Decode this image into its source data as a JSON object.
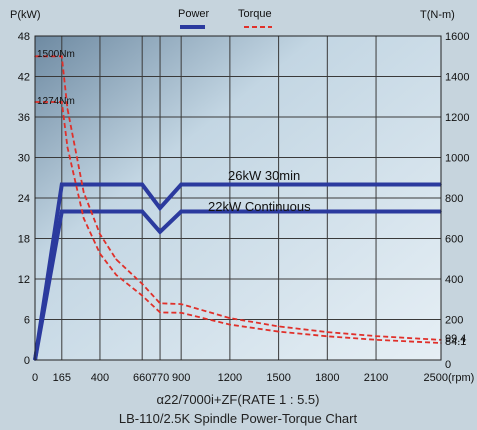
{
  "chart_data": {
    "type": "line",
    "title": "LB-110/2.5K Spindle Power-Torque Chart",
    "subtitle": "α22/7000i+ZF(RATE 1 : 5.5)",
    "xlabel": "",
    "x_unit": "(rpm)",
    "ylabel": "P(kW)",
    "y2label": "T(N-m)",
    "xlim": [
      0,
      2500
    ],
    "ylim": [
      0,
      48
    ],
    "y2lim": [
      0,
      1600
    ],
    "x_ticks": [
      0,
      165,
      400,
      660,
      770,
      900,
      1200,
      1500,
      1800,
      2100,
      2500
    ],
    "y_ticks": [
      0,
      6,
      12,
      18,
      24,
      30,
      36,
      42,
      48
    ],
    "y2_ticks": [
      0,
      200,
      400,
      600,
      800,
      1000,
      1200,
      1400,
      1600
    ],
    "y2_extra_labels": [
      {
        "text": "99.4",
        "value": 99.4
      },
      {
        "text": "84.1",
        "value": 84.1
      }
    ],
    "grid": true,
    "legend": {
      "placement": "top-center",
      "entries": [
        {
          "name": "Power",
          "color": "#2b3a9e",
          "style": "solid"
        },
        {
          "name": "Torque",
          "color": "#e0302a",
          "style": "dashed"
        }
      ]
    },
    "series": [
      {
        "name": "Power",
        "label": "26kW  30min",
        "axis": "left",
        "x": [
          0,
          165,
          660,
          770,
          900,
          2500
        ],
        "y": [
          0,
          26,
          26,
          22.5,
          26,
          26
        ]
      },
      {
        "name": "Power",
        "label": "22kW  Continuous",
        "axis": "left",
        "x": [
          0,
          165,
          660,
          770,
          900,
          2500
        ],
        "y": [
          0,
          22,
          22,
          19,
          22,
          22
        ]
      },
      {
        "name": "Torque",
        "label": "1500Nm",
        "axis": "right",
        "x": [
          0,
          165,
          200,
          300,
          400,
          500,
          660,
          770,
          900,
          1200,
          1500,
          1800,
          2100,
          2500
        ],
        "y": [
          1500,
          1500,
          1240,
          828,
          621,
          497,
          376,
          280,
          276,
          207,
          166,
          138,
          118,
          99.4
        ]
      },
      {
        "name": "Torque",
        "label": "1274Nm",
        "axis": "right",
        "x": [
          0,
          165,
          200,
          300,
          400,
          500,
          660,
          770,
          900,
          1200,
          1500,
          1800,
          2100,
          2500
        ],
        "y": [
          1274,
          1274,
          1050,
          700,
          525,
          420,
          318,
          235,
          233,
          175,
          140,
          117,
          100,
          84.1
        ]
      }
    ],
    "colors": {
      "power": "#2b3a9e",
      "torque": "#e0302a",
      "plot_bg_light": "#dbe8f0",
      "plot_bg_dark": "#5d7a92"
    }
  }
}
